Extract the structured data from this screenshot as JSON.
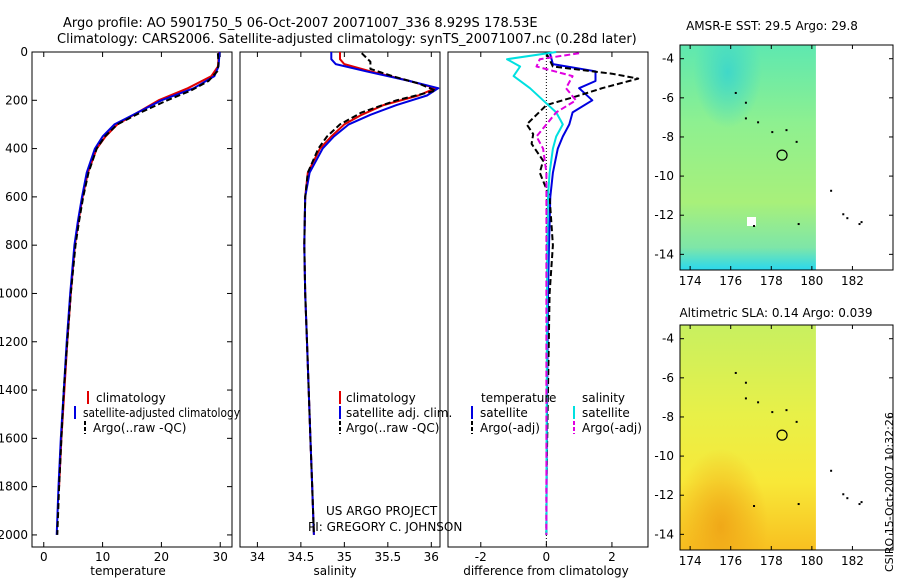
{
  "figure": {
    "title_line1": "Argo profile: AO 5901750_5 06-Oct-2007 20071007_336 8.929S 178.53E",
    "title_line2": "Climatology: CARS2006. Satellite-adjusted climatology: synTS_20071007.nc (0.28d later)",
    "project_line1": "US ARGO PROJECT",
    "project_line2": "PI: GREGORY C. JOHNSON",
    "credit": "CSIRO 15-Oct-2007 10:32:26"
  },
  "colors": {
    "climatology": "#e00000",
    "satellite": "#0000e0",
    "argo": "#000000",
    "salinity_satellite": "#00e0e0",
    "salinity_argo": "#e000e0"
  },
  "chart_data": [
    {
      "id": "temperature",
      "type": "line",
      "xlabel": "temperature",
      "ylabel": "",
      "xlim": [
        -2,
        32
      ],
      "ylim": [
        2050,
        0
      ],
      "xticks": [
        "0",
        "10",
        "20",
        "30"
      ],
      "xtick_values": [
        0,
        10,
        20,
        30
      ],
      "yticks": [
        "0",
        "200",
        "400",
        "600",
        "800",
        "1000",
        "1200",
        "1400",
        "1600",
        "1800",
        "2000"
      ],
      "ytick_values": [
        0,
        200,
        400,
        600,
        800,
        1000,
        1200,
        1400,
        1600,
        1800,
        2000
      ],
      "legend": [
        "climatology",
        "satellite-adjusted climatology",
        "Argo(..raw -QC)"
      ],
      "series": [
        {
          "name": "climatology",
          "style": "solid",
          "color": "#e00000",
          "depth": [
            0,
            60,
            100,
            150,
            200,
            250,
            300,
            350,
            400,
            500,
            600,
            700,
            800,
            1000,
            1200,
            1400,
            1600,
            1800
          ],
          "values": [
            29.8,
            29.6,
            28.5,
            24.5,
            19.5,
            16.0,
            12.5,
            10.5,
            9.0,
            7.5,
            6.6,
            5.9,
            5.3,
            4.6,
            4.0,
            3.5,
            3.0,
            2.6
          ]
        },
        {
          "name": "satellite-adjusted climatology",
          "style": "solid",
          "color": "#0000e0",
          "depth": [
            0,
            60,
            100,
            150,
            200,
            250,
            300,
            350,
            400,
            500,
            600,
            700,
            800,
            1000,
            1200,
            1400,
            1600,
            1800,
            2000
          ],
          "values": [
            29.9,
            29.7,
            29.0,
            25.5,
            20.0,
            16.0,
            12.0,
            10.0,
            8.7,
            7.3,
            6.5,
            5.8,
            5.2,
            4.5,
            3.9,
            3.4,
            2.9,
            2.5,
            2.2
          ]
        },
        {
          "name": "Argo(..raw -QC)",
          "style": "dashed",
          "color": "#000000",
          "depth": [
            5,
            50,
            80,
            120,
            160,
            200,
            250,
            300,
            350,
            400,
            500,
            600,
            700,
            800,
            1000,
            1200,
            1400,
            1600,
            1800,
            2000
          ],
          "values": [
            29.6,
            29.7,
            29.5,
            28.0,
            25.0,
            21.0,
            16.5,
            12.5,
            10.4,
            9.0,
            7.6,
            6.7,
            6.0,
            5.4,
            4.6,
            4.0,
            3.4,
            3.0,
            2.6,
            2.3
          ]
        }
      ]
    },
    {
      "id": "salinity",
      "type": "line",
      "xlabel": "salinity",
      "xlim": [
        33.8,
        36.1
      ],
      "ylim": [
        2050,
        0
      ],
      "xticks": [
        "34",
        "34.5",
        "35",
        "35.5",
        "36"
      ],
      "xtick_values": [
        34,
        34.5,
        35,
        35.5,
        36
      ],
      "legend": [
        "climatology",
        "satellite adj. clim.",
        "Argo(..raw -QC)"
      ],
      "series": [
        {
          "name": "climatology",
          "style": "solid",
          "color": "#e00000",
          "depth": [
            0,
            30,
            50,
            80,
            120,
            150,
            180,
            220,
            260,
            300,
            350,
            400,
            500,
            600,
            800,
            1000,
            1200,
            1400,
            1600,
            1800,
            2000
          ],
          "values": [
            34.95,
            34.95,
            35.0,
            35.3,
            35.75,
            36.05,
            35.85,
            35.45,
            35.2,
            35.0,
            34.85,
            34.72,
            34.58,
            34.55,
            34.54,
            34.55,
            34.57,
            34.59,
            34.61,
            34.63,
            34.65
          ]
        },
        {
          "name": "satellite adj. clim.",
          "style": "solid",
          "color": "#0000e0",
          "depth": [
            0,
            30,
            50,
            80,
            120,
            150,
            180,
            220,
            260,
            300,
            350,
            400,
            500,
            600,
            800,
            1000,
            1200,
            1400,
            1600,
            1800,
            2000
          ],
          "values": [
            34.85,
            34.85,
            34.9,
            35.25,
            35.75,
            36.08,
            35.95,
            35.6,
            35.3,
            35.05,
            34.88,
            34.75,
            34.6,
            34.55,
            34.54,
            34.55,
            34.57,
            34.59,
            34.61,
            34.63,
            34.65
          ]
        },
        {
          "name": "Argo(..raw -QC)",
          "style": "dashed",
          "color": "#000000",
          "depth": [
            5,
            40,
            70,
            100,
            130,
            160,
            200,
            250,
            300,
            350,
            400,
            500,
            600,
            800,
            1000,
            1200,
            1400,
            1600,
            1800,
            2000
          ],
          "values": [
            35.2,
            35.3,
            35.3,
            35.55,
            35.85,
            36.05,
            35.6,
            35.2,
            34.95,
            34.8,
            34.7,
            34.58,
            34.55,
            34.54,
            34.55,
            34.57,
            34.59,
            34.61,
            34.63,
            34.65
          ]
        }
      ]
    },
    {
      "id": "difference",
      "type": "line",
      "xlabel": "difference from climatology",
      "xlim": [
        -3,
        3.1
      ],
      "ylim": [
        2050,
        0
      ],
      "xticks": [
        "-2",
        "0",
        "2"
      ],
      "xtick_values": [
        -2,
        0,
        2
      ],
      "legend_temperature_title": "temperature",
      "legend_salinity_title": "salinity",
      "legend": [
        "satellite",
        "Argo(-adj)",
        "satellite",
        "Argo(-adj)"
      ],
      "series": [
        {
          "name": "temperature satellite",
          "style": "solid",
          "color": "#0000e0",
          "depth": [
            0,
            50,
            80,
            120,
            150,
            200,
            250,
            300,
            350,
            400,
            500,
            600,
            800,
            1000,
            1500,
            2000
          ],
          "values": [
            0.1,
            0.2,
            1.5,
            1.5,
            1.0,
            1.4,
            0.8,
            0.7,
            0.5,
            0.35,
            0.2,
            0.12,
            0.08,
            0.05,
            0.02,
            0.0
          ]
        },
        {
          "name": "temperature Argo(-adj)",
          "style": "dashed",
          "color": "#000000",
          "depth": [
            5,
            60,
            90,
            110,
            150,
            180,
            220,
            260,
            300,
            340,
            380,
            450,
            500,
            600,
            800,
            1000,
            1400,
            1800,
            2000
          ],
          "values": [
            0.0,
            0.2,
            2.0,
            2.8,
            1.7,
            1.0,
            0.0,
            -0.3,
            -0.6,
            -0.4,
            -0.45,
            -0.1,
            -0.2,
            0.1,
            0.2,
            0.1,
            0.05,
            0.0,
            0.0
          ]
        },
        {
          "name": "salinity satellite",
          "style": "solid",
          "color": "#00e0e0",
          "depth": [
            0,
            30,
            60,
            100,
            150,
            200,
            250,
            300,
            350,
            400,
            500,
            600,
            800,
            1000,
            1500,
            2000
          ],
          "values": [
            0.3,
            -1.2,
            -0.8,
            -1.0,
            -0.5,
            -0.1,
            0.3,
            0.5,
            0.3,
            0.2,
            0.1,
            0.05,
            0.03,
            0.02,
            0.01,
            0.0
          ]
        },
        {
          "name": "salinity Argo(-adj)",
          "style": "dashed",
          "color": "#e000e0",
          "depth": [
            5,
            30,
            60,
            100,
            150,
            200,
            250,
            300,
            350,
            400,
            500,
            600,
            800,
            1000,
            1500,
            2000
          ],
          "values": [
            1.0,
            -0.2,
            -0.3,
            0.8,
            0.6,
            0.9,
            0.3,
            0.0,
            -0.3,
            -0.1,
            0.0,
            0.0,
            0.0,
            0.0,
            0.0,
            0.0
          ]
        }
      ]
    },
    {
      "id": "sst_map",
      "type": "heatmap",
      "title": "AMSR-E SST: 29.5 Argo: 29.8",
      "xlim": [
        173.5,
        184
      ],
      "ylim": [
        -14.8,
        -3.3
      ],
      "xticks": [
        "174",
        "176",
        "178",
        "180",
        "182"
      ],
      "xtick_values": [
        174,
        176,
        178,
        180,
        182
      ],
      "yticks": [
        "-4",
        "-6",
        "-8",
        "-10",
        "-12",
        "-14"
      ],
      "ytick_values": [
        -4,
        -6,
        -8,
        -10,
        -12,
        -14
      ],
      "data_extent_lon": [
        173.5,
        180.2
      ],
      "argo_position": {
        "lon": 178.53,
        "lat": -8.929
      }
    },
    {
      "id": "sla_map",
      "type": "heatmap",
      "title": "Altimetric SLA: 0.14 Argo: 0.039",
      "xlim": [
        173.5,
        184
      ],
      "ylim": [
        -14.8,
        -3.3
      ],
      "xticks": [
        "174",
        "176",
        "178",
        "180",
        "182"
      ],
      "xtick_values": [
        174,
        176,
        178,
        180,
        182
      ],
      "yticks": [
        "-4",
        "-6",
        "-8",
        "-10",
        "-12",
        "-14"
      ],
      "ytick_values": [
        -4,
        -6,
        -8,
        -10,
        -12,
        -14
      ],
      "data_extent_lon": [
        173.5,
        180.2
      ],
      "argo_position": {
        "lon": 178.53,
        "lat": -8.929
      }
    }
  ]
}
